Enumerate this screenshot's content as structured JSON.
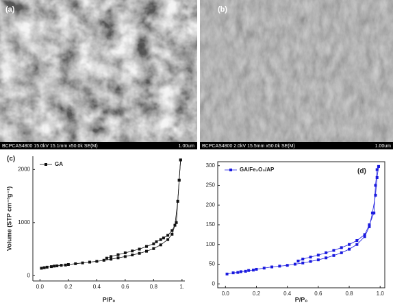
{
  "images": [
    {
      "label": "(a)",
      "caption": "BCPCAS4800 15.0kV 15.1mm x50.0k SE(M)",
      "scale": "1.00um"
    },
    {
      "label": "(b)",
      "caption": "BCPCAS4800 2.0kV 15.5mm x50.0k SE(M)",
      "scale": "1.00um"
    }
  ],
  "chart_data": [
    {
      "type": "line",
      "panel": "(c)",
      "xlabel": "P/P₀",
      "ylabel": "Volume (STP cm⁻³g⁻¹)",
      "box": false,
      "legend": "upper left",
      "xlim": [
        -0.05,
        1.02
      ],
      "ylim": [
        -100,
        2250
      ],
      "xticks": [
        {
          "value": 0,
          "label": "0.0"
        },
        {
          "value": 0.2,
          "label": "0.2"
        },
        {
          "value": 0.4,
          "label": "0.4"
        },
        {
          "value": 0.6,
          "label": "0.6"
        },
        {
          "value": 0.8,
          "label": "0.8"
        },
        {
          "value": 1,
          "label": "1."
        }
      ],
      "yticks": [
        0,
        1000,
        2000
      ],
      "series": [
        {
          "name": "GA",
          "color": "#111111",
          "x": [
            0.01,
            0.03,
            0.05,
            0.08,
            0.1,
            0.12,
            0.15,
            0.18,
            0.2,
            0.25,
            0.3,
            0.35,
            0.4,
            0.45,
            0.5,
            0.55,
            0.6,
            0.65,
            0.7,
            0.75,
            0.8,
            0.85,
            0.9,
            0.93,
            0.95,
            0.97,
            0.98,
            0.99
          ],
          "values": [
            140,
            150,
            160,
            170,
            180,
            185,
            195,
            200,
            210,
            225,
            240,
            255,
            270,
            290,
            310,
            335,
            360,
            390,
            420,
            460,
            510,
            580,
            680,
            780,
            950,
            1400,
            1800,
            2180
          ]
        },
        {
          "color": "#111111",
          "x": [
            0.99,
            0.98,
            0.96,
            0.93,
            0.9,
            0.87,
            0.85,
            0.82,
            0.8,
            0.75,
            0.7,
            0.65,
            0.6,
            0.55,
            0.5,
            0.47
          ],
          "values": [
            2180,
            1800,
            1000,
            850,
            760,
            710,
            680,
            640,
            600,
            550,
            500,
            465,
            430,
            395,
            360,
            330
          ]
        }
      ]
    },
    {
      "type": "line",
      "panel": "(d)",
      "xlabel": "P/P₀",
      "box": true,
      "legend": "upper left",
      "xlim": [
        -0.05,
        1.03
      ],
      "ylim": [
        -10,
        310
      ],
      "xticks": [
        {
          "value": 0,
          "label": "0.0"
        },
        {
          "value": 0.2,
          "label": "0.2"
        },
        {
          "value": 0.4,
          "label": "0.4"
        },
        {
          "value": 0.6,
          "label": "0.6"
        },
        {
          "value": 0.8,
          "label": "0.8"
        },
        {
          "value": 1,
          "label": "1.0"
        }
      ],
      "yticks": [
        0,
        50,
        100,
        150,
        200,
        250,
        300
      ],
      "series": [
        {
          "name": "GA/Fe₂O₃/AP",
          "color": "#1a1adf",
          "x": [
            0.01,
            0.05,
            0.08,
            0.1,
            0.13,
            0.15,
            0.18,
            0.2,
            0.25,
            0.3,
            0.35,
            0.4,
            0.45,
            0.5,
            0.55,
            0.6,
            0.65,
            0.7,
            0.75,
            0.8,
            0.85,
            0.9,
            0.93,
            0.95,
            0.97,
            0.98,
            0.99
          ],
          "values": [
            25,
            28,
            29,
            31,
            32,
            34,
            35,
            37,
            40,
            43,
            45,
            47,
            50,
            53,
            57,
            61,
            66,
            72,
            79,
            88,
            100,
            120,
            145,
            180,
            225,
            270,
            298
          ]
        },
        {
          "color": "#1a1adf",
          "x": [
            0.99,
            0.98,
            0.97,
            0.96,
            0.93,
            0.9,
            0.85,
            0.8,
            0.75,
            0.7,
            0.65,
            0.6,
            0.55,
            0.5,
            0.47
          ],
          "values": [
            298,
            290,
            250,
            180,
            150,
            125,
            110,
            100,
            92,
            85,
            79,
            73,
            68,
            63,
            58
          ]
        }
      ]
    }
  ]
}
